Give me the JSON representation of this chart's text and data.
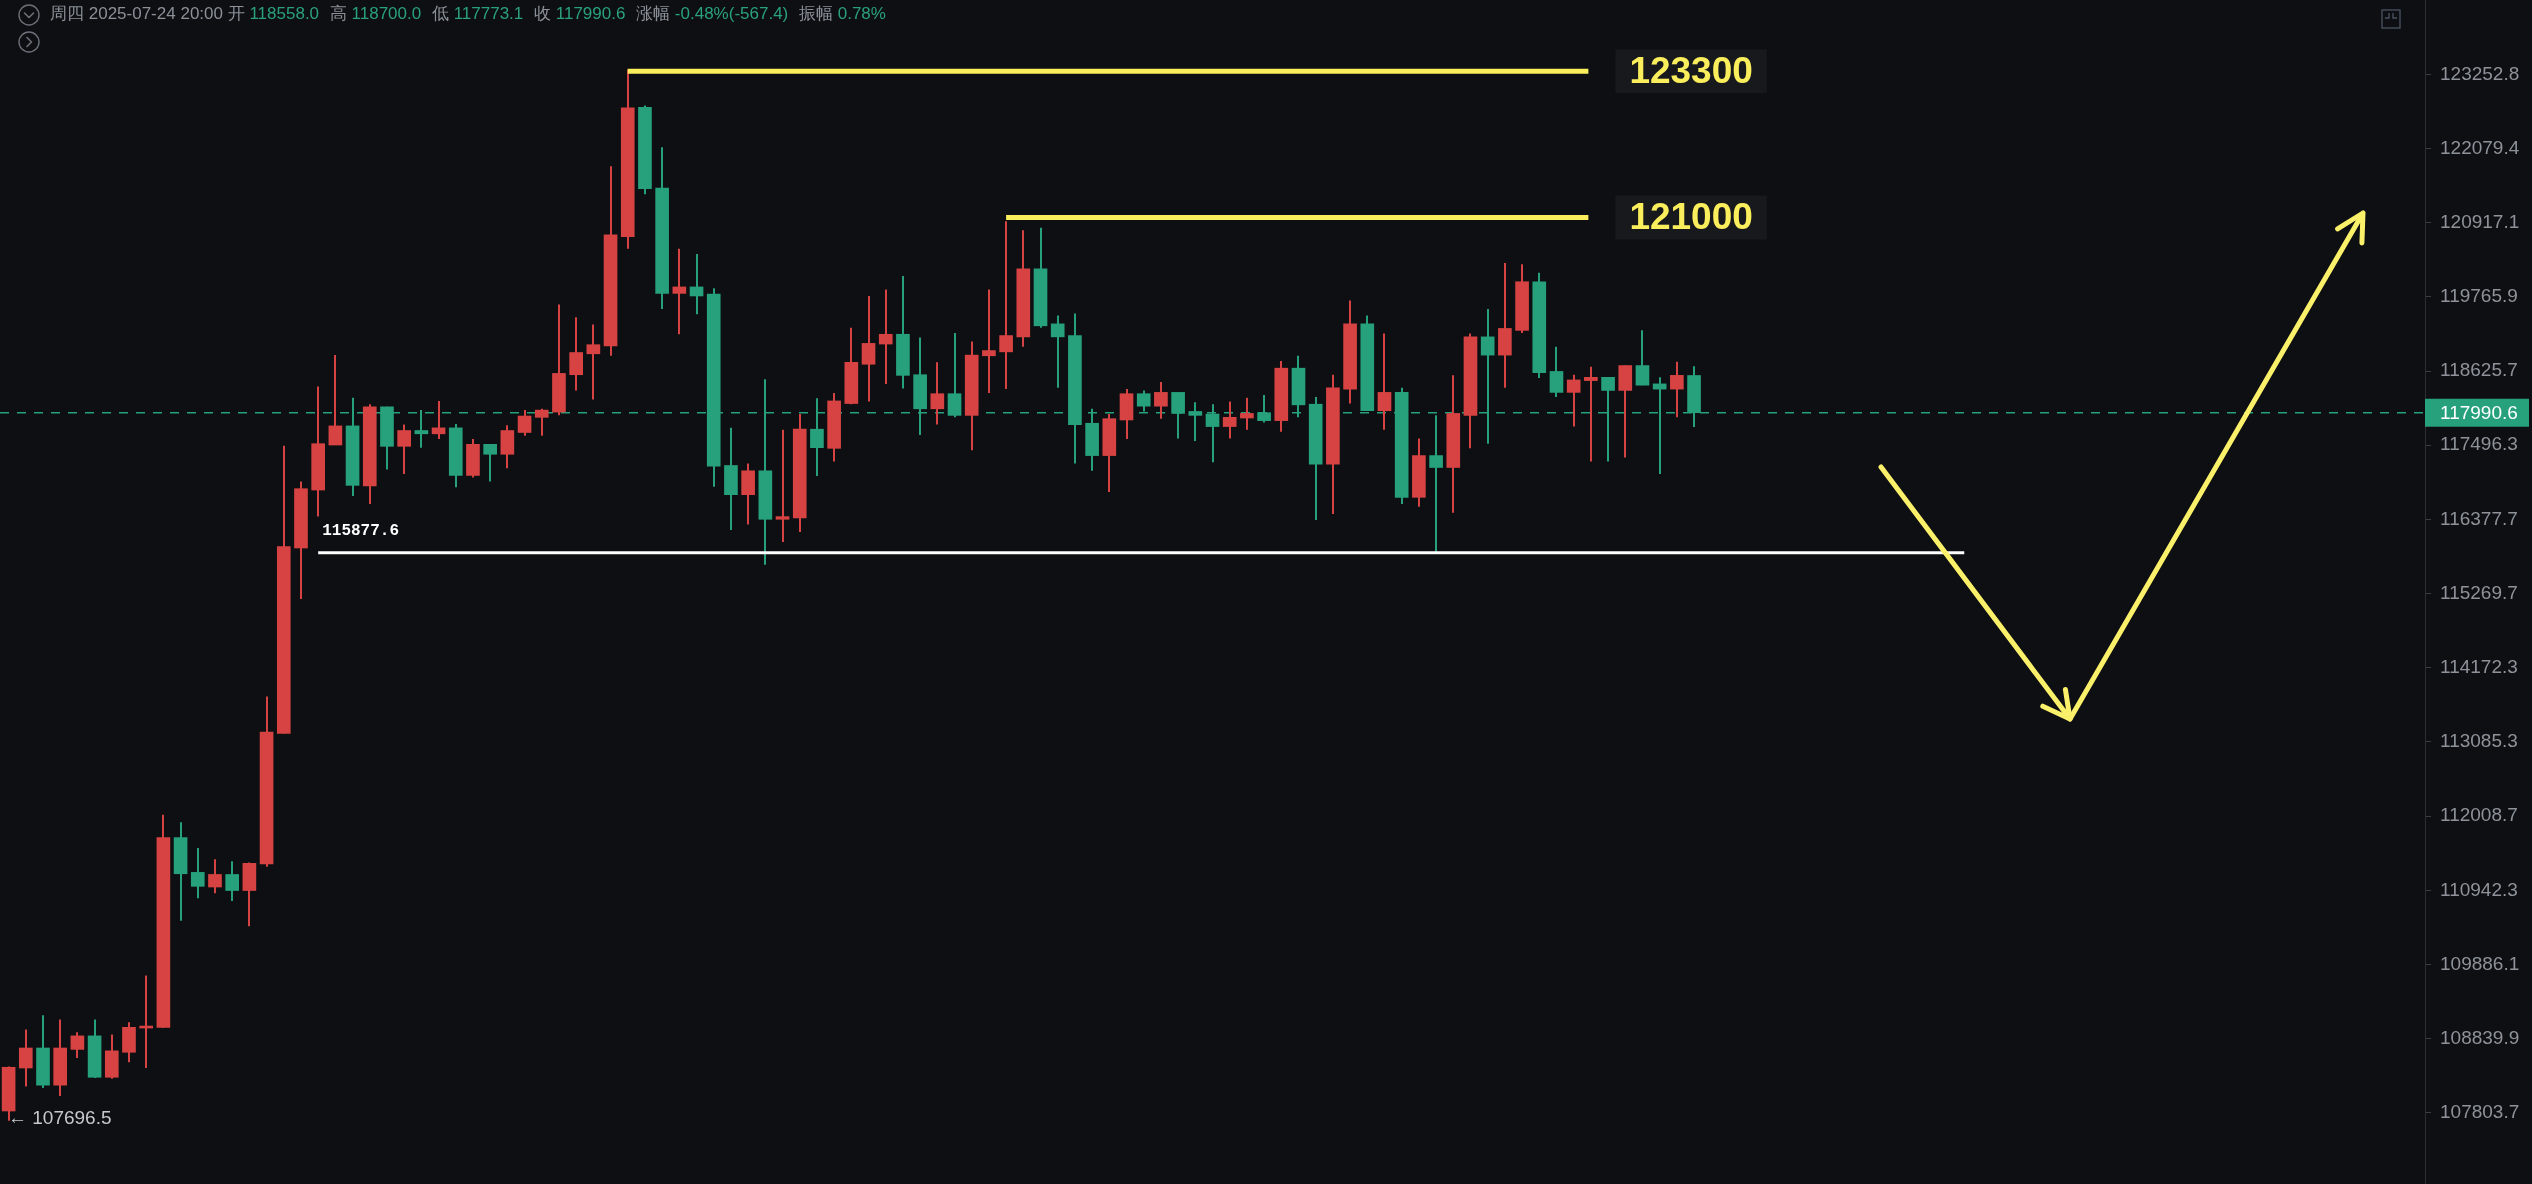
{
  "chart_data": {
    "type": "candlestick",
    "title": "周四 2025-07-24 20:00 开 118558.0 高 118700.0 低 117773.1 收 117990.6 涨幅 -0.48%(-567.4) 振幅 0.78%",
    "categories": [
      null,
      null,
      null,
      null,
      null,
      null,
      null,
      null,
      null,
      null,
      null,
      null,
      null,
      null,
      null,
      null,
      null,
      null,
      null,
      null,
      null,
      null,
      null,
      null,
      null,
      null,
      null,
      null,
      null,
      null,
      null,
      null,
      null,
      null,
      null,
      null,
      null,
      null,
      null,
      null,
      null,
      null,
      null,
      null,
      null,
      null,
      null,
      null,
      null,
      null,
      null,
      null,
      null,
      null,
      null,
      null,
      null,
      null,
      null,
      null,
      null,
      null,
      null,
      null,
      null,
      null,
      null,
      null,
      null,
      null,
      null,
      null,
      null,
      null,
      null,
      null,
      null,
      null,
      null,
      null,
      null,
      null,
      null,
      null,
      null,
      null,
      null,
      null,
      null,
      null,
      null,
      null,
      null,
      null,
      null,
      null,
      null,
      null,
      null,
      null,
      null,
      null,
      null,
      null,
      null,
      null,
      null,
      null,
      null,
      null,
      null,
      null,
      null,
      null,
      null,
      null,
      null,
      null,
      null,
      null,
      null,
      null,
      null,
      null,
      null,
      null,
      null,
      null,
      null,
      null,
      null,
      null,
      null,
      null,
      null,
      null,
      null,
      null,
      null,
      null,
      null
    ],
    "ohlc": [
      [
        107830,
        108450,
        107696.5,
        108440
      ],
      [
        108430,
        108970,
        108170,
        108710
      ],
      [
        108710,
        109170,
        108150,
        108190
      ],
      [
        108190,
        109110,
        108040,
        108710
      ],
      [
        108690,
        108930,
        108570,
        108880
      ],
      [
        108880,
        109110,
        108290,
        108300
      ],
      [
        108300,
        108900,
        108280,
        108670
      ],
      [
        108650,
        109070,
        108510,
        109000
      ],
      [
        108990,
        109730,
        108430,
        109010
      ],
      [
        109000,
        112030,
        108990,
        111700
      ],
      [
        111700,
        111920,
        110510,
        111180
      ],
      [
        111200,
        111550,
        110830,
        111000
      ],
      [
        110990,
        111390,
        110900,
        111170
      ],
      [
        111170,
        111360,
        110790,
        110940
      ],
      [
        110940,
        111340,
        110430,
        111330
      ],
      [
        111320,
        113750,
        111280,
        113230
      ],
      [
        113210,
        117490,
        113210,
        115970
      ],
      [
        115950,
        116950,
        115190,
        116840
      ],
      [
        116820,
        118390,
        116420,
        117520
      ],
      [
        117500,
        118870,
        117500,
        117790
      ],
      [
        117790,
        118220,
        116730,
        116890
      ],
      [
        116880,
        118120,
        116610,
        118080
      ],
      [
        118080,
        118080,
        117130,
        117480
      ],
      [
        117480,
        117810,
        117060,
        117720
      ],
      [
        117720,
        118030,
        117460,
        117670
      ],
      [
        117670,
        118170,
        117590,
        117760
      ],
      [
        117760,
        117820,
        116860,
        117040
      ],
      [
        117040,
        117590,
        117010,
        117510
      ],
      [
        117510,
        117510,
        116950,
        117360
      ],
      [
        117360,
        117800,
        117150,
        117720
      ],
      [
        117690,
        118030,
        117640,
        117940
      ],
      [
        117920,
        118050,
        117640,
        118030
      ],
      [
        118000,
        119650,
        117950,
        118590
      ],
      [
        118570,
        119450,
        118330,
        118910
      ],
      [
        118890,
        119340,
        118190,
        119030
      ],
      [
        119010,
        121800,
        118860,
        120730
      ],
      [
        120700,
        123330,
        120510,
        122720
      ],
      [
        122730,
        122760,
        121360,
        121450
      ],
      [
        121460,
        122100,
        119580,
        119820
      ],
      [
        119820,
        120510,
        119190,
        119920
      ],
      [
        119920,
        120430,
        119500,
        119780
      ],
      [
        119810,
        119900,
        116870,
        117180
      ],
      [
        117190,
        117760,
        116220,
        116750
      ],
      [
        116750,
        117220,
        116300,
        117110
      ],
      [
        117110,
        118500,
        115700,
        116380
      ],
      [
        116380,
        117730,
        116040,
        116420
      ],
      [
        116400,
        117970,
        116190,
        117740
      ],
      [
        117740,
        118210,
        117030,
        117460
      ],
      [
        117450,
        118290,
        117250,
        118170
      ],
      [
        118130,
        119290,
        118120,
        118760
      ],
      [
        118730,
        119780,
        118160,
        119050
      ],
      [
        119040,
        119880,
        118430,
        119190
      ],
      [
        119190,
        120090,
        118360,
        118560
      ],
      [
        118570,
        119140,
        117650,
        118050
      ],
      [
        118050,
        118760,
        117810,
        118280
      ],
      [
        118280,
        119210,
        117920,
        117950
      ],
      [
        117950,
        119080,
        117420,
        118870
      ],
      [
        118860,
        119880,
        118290,
        118940
      ],
      [
        118920,
        120940,
        118350,
        119170
      ],
      [
        119150,
        120800,
        119000,
        120200
      ],
      [
        120200,
        120840,
        119290,
        119320
      ],
      [
        119350,
        119480,
        118370,
        119150
      ],
      [
        119170,
        119510,
        117220,
        117810
      ],
      [
        117830,
        118050,
        117110,
        117340
      ],
      [
        117340,
        117970,
        116790,
        117900
      ],
      [
        117880,
        118350,
        117590,
        118280
      ],
      [
        118280,
        118330,
        118010,
        118090
      ],
      [
        118090,
        118460,
        117900,
        118300
      ],
      [
        118300,
        118300,
        117600,
        117980
      ],
      [
        118010,
        118150,
        117560,
        117950
      ],
      [
        117970,
        118120,
        117240,
        117780
      ],
      [
        117780,
        118160,
        117600,
        117920
      ],
      [
        117910,
        118220,
        117730,
        117980
      ],
      [
        117990,
        118260,
        117840,
        117870
      ],
      [
        117870,
        118780,
        117700,
        118670
      ],
      [
        118670,
        118860,
        117920,
        118110
      ],
      [
        118120,
        118230,
        116370,
        117210
      ],
      [
        117210,
        118570,
        116460,
        118370
      ],
      [
        118350,
        119710,
        118130,
        119350
      ],
      [
        119350,
        119480,
        118020,
        118020
      ],
      [
        118020,
        119200,
        117730,
        118300
      ],
      [
        118300,
        118370,
        116610,
        116710
      ],
      [
        116710,
        117600,
        116570,
        117340
      ],
      [
        117340,
        117950,
        115880,
        117160
      ],
      [
        117160,
        118560,
        116480,
        117980
      ],
      [
        117950,
        119200,
        117450,
        119150
      ],
      [
        119150,
        119580,
        117520,
        118870
      ],
      [
        118870,
        120290,
        118370,
        119280
      ],
      [
        119250,
        120270,
        119210,
        120000
      ],
      [
        120000,
        120140,
        118520,
        118600
      ],
      [
        118620,
        119000,
        118230,
        118300
      ],
      [
        118300,
        118570,
        117780,
        118490
      ],
      [
        118480,
        118690,
        117250,
        118530
      ],
      [
        118530,
        118530,
        117250,
        118330
      ],
      [
        118330,
        118710,
        117310,
        118710
      ],
      [
        118710,
        119250,
        118410,
        118410
      ],
      [
        118430,
        118530,
        117060,
        118350
      ],
      [
        118350,
        118770,
        117920,
        118560
      ],
      [
        118558.0,
        118700.0,
        117773.1,
        117990.6
      ],
      null,
      null,
      null,
      null,
      null,
      null,
      null,
      null,
      null,
      null,
      null,
      null,
      null,
      null,
      null,
      null,
      null,
      null,
      null,
      null,
      null,
      null,
      null,
      null,
      null,
      null,
      null,
      null,
      null,
      null,
      null,
      null,
      null,
      null,
      null,
      null,
      null,
      null,
      null,
      null,
      null,
      null
    ],
    "colors": [
      "#d64342",
      "#d64342",
      "#26a17b",
      "#d64342",
      "#d64342",
      "#26a17b",
      "#d64342",
      "#d64342",
      "#d64342",
      "#d64342",
      "#26a17b",
      "#26a17b",
      "#d64342",
      "#26a17b",
      "#d64342",
      "#d64342",
      "#d64342",
      "#d64342",
      "#d64342",
      "#d64342",
      "#26a17b",
      "#d64342",
      "#26a17b",
      "#d64342",
      "#26a17b",
      "#d64342",
      "#26a17b",
      "#d64342",
      "#26a17b",
      "#d64342",
      "#d64342",
      "#d64342",
      "#d64342",
      "#d64342",
      "#d64342",
      "#d64342",
      "#d64342",
      "#26a17b",
      "#26a17b",
      "#d64342",
      "#26a17b",
      "#26a17b",
      "#26a17b",
      "#d64342",
      "#26a17b",
      "#d64342",
      "#d64342",
      "#26a17b",
      "#d64342",
      "#d64342",
      "#d64342",
      "#d64342",
      "#26a17b",
      "#26a17b",
      "#d64342",
      "#26a17b",
      "#d64342",
      "#d64342",
      "#d64342",
      "#d64342",
      "#26a17b",
      "#26a17b",
      "#26a17b",
      "#26a17b",
      "#d64342",
      "#d64342",
      "#26a17b",
      "#d64342",
      "#26a17b",
      "#26a17b",
      "#26a17b",
      "#d64342",
      "#d64342",
      "#26a17b",
      "#d64342",
      "#26a17b",
      "#26a17b",
      "#d64342",
      "#d64342",
      "#26a17b",
      "#d64342",
      "#26a17b",
      "#d64342",
      "#26a17b",
      "#d64342",
      "#d64342",
      "#26a17b",
      "#d64342",
      "#d64342",
      "#26a17b",
      "#26a17b",
      "#d64342",
      "#d64342",
      "#26a17b",
      "#d64342",
      "#26a17b",
      "#26a17b",
      "#d64342",
      "#26a17b",
      null,
      null,
      null,
      null,
      null,
      null,
      null,
      null,
      null,
      null,
      null,
      null,
      null,
      null,
      null,
      null,
      null,
      null,
      null,
      null,
      null,
      null,
      null,
      null,
      null,
      null,
      null,
      null,
      null,
      null,
      null,
      null,
      null,
      null,
      null,
      null,
      null,
      null,
      null,
      null,
      null,
      null
    ],
    "ylim": [
      106820,
      124440
    ],
    "yticks": [
      107803.7,
      108839.9,
      109886.1,
      110942.3,
      112008.7,
      113085.3,
      114172.3,
      115269.7,
      116377.7,
      117496.3,
      118625.7,
      119765.9,
      120917.1,
      122079.4,
      123252.8
    ],
    "log": true,
    "tick_labels": "y",
    "ref_lines": [
      {
        "axis": "y",
        "value": 123300,
        "label": "123300",
        "color": "#fbee5c",
        "line_style": "solid"
      },
      {
        "axis": "y",
        "value": 121000,
        "label": "121000",
        "color": "#fbee5c",
        "line_style": "solid"
      },
      {
        "axis": "y",
        "value": 115877.6,
        "label": "115877.6",
        "color": "#ffffff",
        "line_style": "solid"
      },
      {
        "axis": "y",
        "value": 117990.6,
        "label": "117990.6",
        "color": "#26a17b",
        "line_style": "dashed"
      }
    ],
    "annotations": [
      "← 107696.5"
    ]
  }
}
